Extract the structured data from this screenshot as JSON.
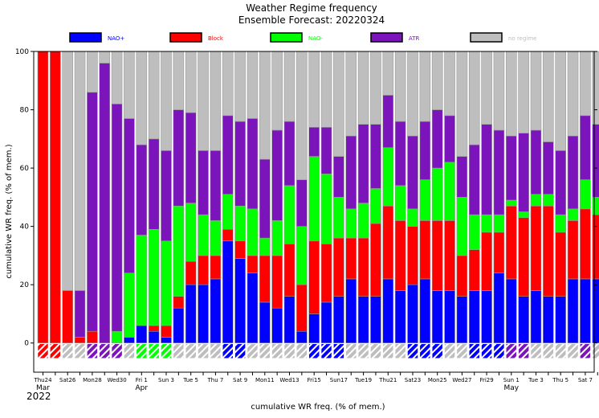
{
  "chart_data": {
    "type": "bar",
    "title": "Weather Regime frequency",
    "subtitle": "Ensemble Forecast: 20220324",
    "ylabel": "cumulative WR freq. (% of mem.)",
    "xlabel": "cumulative WR freq. (% of mem.)",
    "ylim": [
      -10,
      100
    ],
    "y_ticks": [
      0,
      20,
      40,
      60,
      80,
      100
    ],
    "grid": false,
    "legend_position": "top",
    "categories": [
      "2022-03-24",
      "2022-03-25",
      "2022-03-26",
      "2022-03-27",
      "2022-03-28",
      "2022-03-29",
      "2022-03-30",
      "2022-03-31",
      "2022-04-01",
      "2022-04-02",
      "2022-04-03",
      "2022-04-04",
      "2022-04-05",
      "2022-04-06",
      "2022-04-07",
      "2022-04-08",
      "2022-04-09",
      "2022-04-10",
      "2022-04-11",
      "2022-04-12",
      "2022-04-13",
      "2022-04-14",
      "2022-04-15",
      "2022-04-16",
      "2022-04-17",
      "2022-04-18",
      "2022-04-19",
      "2022-04-20",
      "2022-04-21",
      "2022-04-22",
      "2022-04-23",
      "2022-04-24",
      "2022-04-25",
      "2022-04-26",
      "2022-04-27",
      "2022-04-28",
      "2022-04-29",
      "2022-04-30",
      "2022-05-01",
      "2022-05-02",
      "2022-05-03",
      "2022-05-04",
      "2022-05-05",
      "2022-05-06",
      "2022-05-07",
      "2022-05-08"
    ],
    "series": [
      {
        "name": "NAO+",
        "color": "#0000ff",
        "values": [
          0,
          0,
          0,
          0,
          0,
          0,
          0,
          2,
          6,
          4,
          2,
          12,
          20,
          20,
          22,
          35,
          29,
          24,
          14,
          12,
          16,
          4,
          10,
          14,
          16,
          22,
          16,
          16,
          22,
          18,
          20,
          22,
          18,
          18,
          16,
          18,
          18,
          24,
          22,
          16,
          18,
          16,
          16,
          22,
          22,
          22
        ]
      },
      {
        "name": "Block",
        "color": "#ff0000",
        "values": [
          100,
          100,
          18,
          2,
          4,
          0,
          0,
          0,
          0,
          2,
          4,
          4,
          8,
          10,
          8,
          4,
          6,
          6,
          16,
          18,
          18,
          16,
          25,
          20,
          20,
          14,
          20,
          25,
          25,
          24,
          20,
          20,
          24,
          24,
          14,
          14,
          20,
          14,
          25,
          27,
          29,
          31,
          22,
          20,
          24,
          22
        ]
      },
      {
        "name": "NAO-",
        "color": "#00ff00",
        "values": [
          0,
          0,
          0,
          0,
          0,
          0,
          4,
          22,
          31,
          33,
          29,
          31,
          20,
          14,
          12,
          12,
          12,
          16,
          6,
          12,
          20,
          20,
          29,
          24,
          14,
          10,
          12,
          12,
          20,
          12,
          6,
          14,
          18,
          20,
          20,
          12,
          6,
          6,
          2,
          2,
          4,
          4,
          6,
          4,
          10,
          6
        ]
      },
      {
        "name": "ATR",
        "color": "#7b14bb",
        "values": [
          0,
          0,
          0,
          16,
          82,
          96,
          78,
          53,
          31,
          31,
          31,
          33,
          31,
          22,
          24,
          27,
          29,
          31,
          27,
          31,
          22,
          16,
          10,
          16,
          14,
          25,
          27,
          22,
          18,
          22,
          25,
          20,
          20,
          16,
          14,
          24,
          31,
          29,
          22,
          27,
          22,
          18,
          22,
          25,
          22,
          25
        ]
      },
      {
        "name": "no regime",
        "color": "#bebebe",
        "values": [
          0,
          0,
          82,
          82,
          14,
          4,
          18,
          23,
          32,
          30,
          34,
          20,
          21,
          34,
          34,
          22,
          24,
          23,
          37,
          27,
          24,
          44,
          26,
          26,
          36,
          29,
          25,
          25,
          15,
          24,
          29,
          24,
          20,
          22,
          36,
          32,
          25,
          27,
          29,
          28,
          27,
          31,
          34,
          29,
          22,
          25
        ]
      }
    ],
    "dominant_regime_markers": [
      "Block",
      "Block",
      "no regime",
      "no regime",
      "ATR",
      "ATR",
      "ATR",
      "no regime",
      "NAO-",
      "NAO-",
      "NAO-",
      "no regime",
      "no regime",
      "no regime",
      "no regime",
      "NAO+",
      "NAO+",
      "no regime",
      "no regime",
      "no regime",
      "no regime",
      "no regime",
      "NAO+",
      "NAO+",
      "NAO+",
      "no regime",
      "no regime",
      "no regime",
      "no regime",
      "no regime",
      "NAO+",
      "NAO+",
      "NAO+",
      "no regime",
      "no regime",
      "NAO+",
      "NAO+",
      "NAO+",
      "ATR",
      "ATR",
      "no regime",
      "no regime",
      "no regime",
      "no regime",
      "ATR",
      "no regime"
    ],
    "x_tick_labels": [
      {
        "index": 0,
        "label": "Thu24",
        "color": "#000000"
      },
      {
        "index": 2,
        "label": "Sat26",
        "color": "#000000"
      },
      {
        "index": 4,
        "label": "Mon28",
        "color": "#000000"
      },
      {
        "index": 6,
        "label": "Wed30",
        "color": "#000000"
      },
      {
        "index": 8,
        "label": "Fri 1",
        "color": "#000000"
      },
      {
        "index": 10,
        "label": "Sun 3",
        "color": "#ff0000"
      },
      {
        "index": 12,
        "label": "Tue 5",
        "color": "#000000"
      },
      {
        "index": 14,
        "label": "Thu 7",
        "color": "#000000"
      },
      {
        "index": 16,
        "label": "Sat 9",
        "color": "#000000"
      },
      {
        "index": 18,
        "label": "Mon11",
        "color": "#000000"
      },
      {
        "index": 20,
        "label": "Wed13",
        "color": "#000000"
      },
      {
        "index": 22,
        "label": "Fri15",
        "color": "#000000"
      },
      {
        "index": 24,
        "label": "Sun17",
        "color": "#ff0000"
      },
      {
        "index": 26,
        "label": "Tue19",
        "color": "#000000"
      },
      {
        "index": 28,
        "label": "Thu21",
        "color": "#000000"
      },
      {
        "index": 30,
        "label": "Sat23",
        "color": "#000000"
      },
      {
        "index": 32,
        "label": "Mon25",
        "color": "#000000"
      },
      {
        "index": 34,
        "label": "Wed27",
        "color": "#000000"
      },
      {
        "index": 36,
        "label": "Fri29",
        "color": "#000000"
      },
      {
        "index": 38,
        "label": "Sun 1",
        "color": "#ff0000"
      },
      {
        "index": 40,
        "label": "Tue 3",
        "color": "#000000"
      },
      {
        "index": 42,
        "label": "Thu 5",
        "color": "#000000"
      },
      {
        "index": 44,
        "label": "Sat 7",
        "color": "#000000"
      }
    ],
    "month_labels": [
      {
        "index": 0,
        "label": "Mar"
      },
      {
        "index": 8,
        "label": "Apr"
      },
      {
        "index": 38,
        "label": "May"
      }
    ],
    "year_label": "2022"
  }
}
